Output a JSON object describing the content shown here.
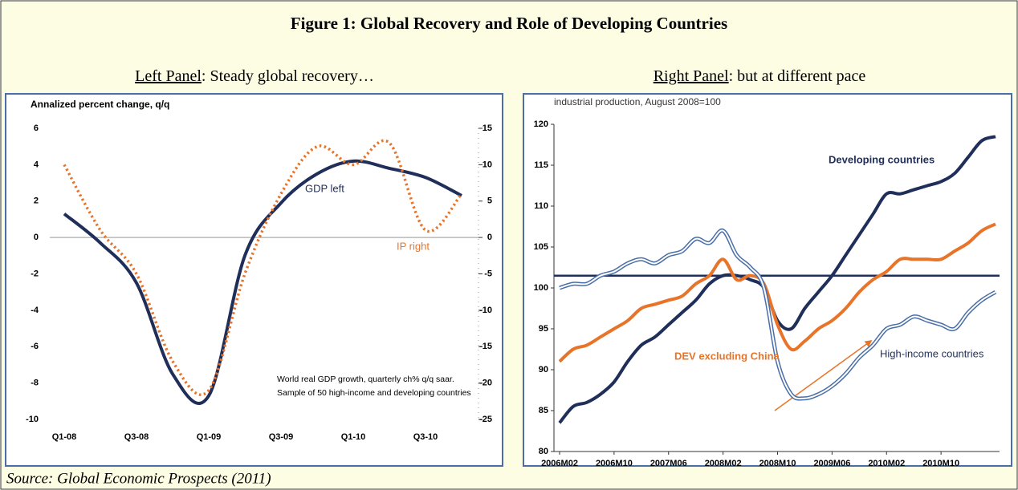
{
  "title": "Figure 1: Global Recovery and Role of Developing Countries",
  "panels": [
    {
      "label": "Left Panel",
      "text": ": Steady global recovery…"
    },
    {
      "label": "Right Panel",
      "text": ": but at different pace"
    }
  ],
  "source": "Source: Global Economic Prospects (2011)",
  "chart_data": [
    {
      "type": "line",
      "ylabel": "Annalized percent change, q/q",
      "categories": [
        "Q1-08",
        null,
        "Q3-08",
        null,
        "Q1-09",
        null,
        "Q3-09",
        null,
        "Q1-10",
        null,
        "Q3-10",
        null
      ],
      "ylim": [
        -10,
        6
      ],
      "yticks": [
        -10,
        -8,
        -6,
        -4,
        -2,
        0,
        2,
        4,
        6
      ],
      "y2lim": [
        -25,
        15
      ],
      "y2ticks": [
        -25,
        -20,
        -15,
        -10,
        -5,
        0,
        5,
        10,
        15
      ],
      "series": [
        {
          "name": "GDP left",
          "color": "#1f2f5a",
          "style": "solid",
          "values": [
            1.3,
            -0.3,
            -2.5,
            -7.5,
            -8.7,
            -1,
            1.9,
            3.5,
            4.2,
            3.8,
            3.3,
            2.3
          ]
        },
        {
          "name": "IP right",
          "color": "#e8742a",
          "style": "dotted",
          "axis": "y2",
          "values": [
            10,
            1,
            -5,
            -17,
            -21,
            -5,
            6,
            12.5,
            10,
            13,
            1,
            6
          ]
        }
      ],
      "annotations": [
        "World real GDP growth, quarterly ch% q/q saar.",
        "Sample of 50 high-income and developing countries"
      ]
    },
    {
      "type": "line",
      "ylabel": "industrial production, August 2008=100",
      "categories": [
        "2006M02",
        null,
        null,
        null,
        "2006M10",
        null,
        null,
        null,
        "2007M06",
        null,
        null,
        null,
        "2008M02",
        null,
        null,
        null,
        "2008M10",
        null,
        null,
        null,
        "2009M06",
        null,
        null,
        null,
        "2010M02",
        null,
        null,
        null,
        "2010M10",
        null,
        null,
        null,
        null
      ],
      "ylim": [
        80,
        120
      ],
      "yticks": [
        80,
        85,
        90,
        95,
        100,
        105,
        110,
        115,
        120
      ],
      "reference_line": 101.5,
      "reference_color": "#1f2f5a",
      "series": [
        {
          "name": "Developing countries",
          "color": "#1f2f5a",
          "style": "solid",
          "values": [
            83.5,
            85.5,
            86,
            87,
            88.5,
            91,
            93,
            94,
            95.5,
            97,
            98.5,
            100.5,
            101.5,
            101.5,
            101,
            100,
            96,
            95,
            97.5,
            99.5,
            101.5,
            104,
            106.5,
            109,
            111.5,
            111.5,
            112,
            112.5,
            113,
            114,
            116,
            118,
            118.5
          ]
        },
        {
          "name": "DEV excluding China",
          "color": "#e8742a",
          "style": "solid",
          "values": [
            91,
            92.5,
            93,
            94,
            95,
            96,
            97.5,
            98,
            98.5,
            99,
            100.5,
            101.5,
            103.5,
            101,
            101.5,
            100.5,
            95.5,
            92.5,
            93.5,
            95,
            96,
            97.5,
            99.5,
            101,
            102,
            103.5,
            103.5,
            103.5,
            103.5,
            104.5,
            105.5,
            107,
            107.8
          ]
        },
        {
          "name": "High-income countries",
          "color": "#4a6fa8",
          "style": "double",
          "values": [
            100,
            100.5,
            100.5,
            101.5,
            102,
            103,
            103.5,
            103,
            104,
            104.5,
            106,
            105.5,
            107,
            104,
            102.5,
            100,
            91,
            87,
            86.5,
            87,
            88,
            89.5,
            91.5,
            93,
            95,
            95.5,
            96.5,
            96,
            95.5,
            95,
            97,
            98.5,
            99.5
          ]
        }
      ]
    }
  ]
}
